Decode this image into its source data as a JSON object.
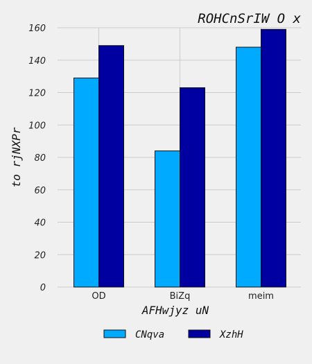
{
  "chart_data": {
    "type": "bar",
    "title": "ROHCnSrIW O x",
    "xlabel": "AFHwjyz  uN",
    "ylabel": "to rjNXPr",
    "categories": [
      "OD",
      "BiZq",
      "meim"
    ],
    "series": [
      {
        "name": "CNqva",
        "values": [
          129,
          84,
          148
        ],
        "color": "#00aaff"
      },
      {
        "name": "XzhH",
        "values": [
          149,
          123,
          159
        ],
        "color": "#0000a0"
      }
    ],
    "ylim": [
      0,
      160
    ],
    "yticks": [
      0,
      20,
      40,
      60,
      80,
      100,
      120,
      140,
      160
    ],
    "grid": true,
    "legend_position": "bottom"
  }
}
